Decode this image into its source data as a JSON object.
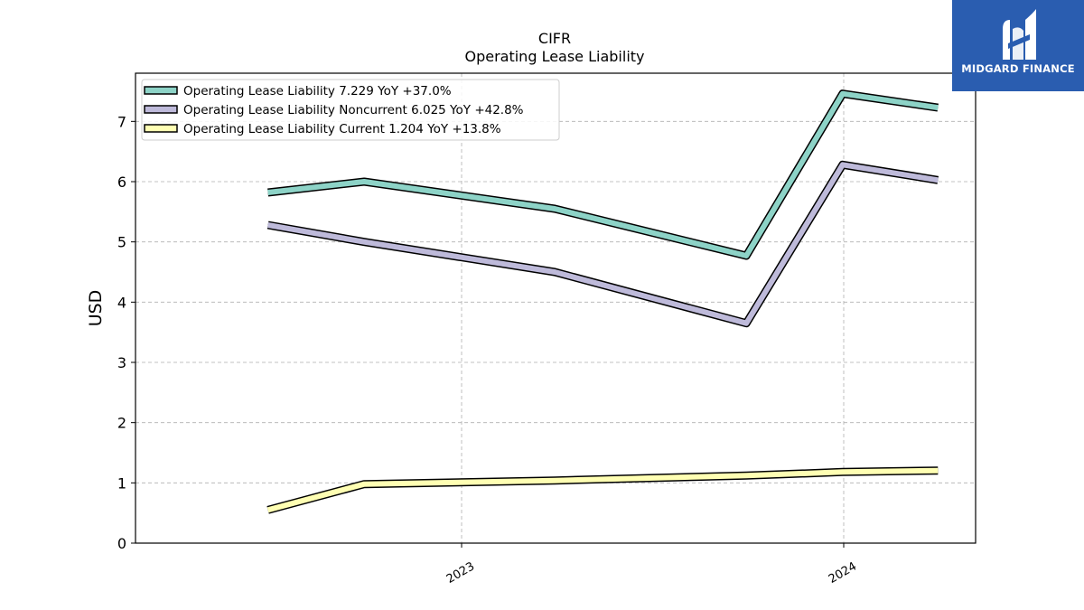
{
  "chart_data": {
    "type": "line",
    "title": "CIFR",
    "subtitle": "Operating Lease Liability",
    "ylabel": "USD",
    "xlabel": "",
    "ylim": [
      0,
      7.8
    ],
    "yticks": [
      0,
      1,
      2,
      3,
      4,
      5,
      6,
      7
    ],
    "x": [
      "2022-06-30",
      "2022-09-30",
      "2023-03-31",
      "2023-09-30",
      "2023-12-31",
      "2024-03-31"
    ],
    "xticks": [
      "2023",
      "2024"
    ],
    "xtick_dates": [
      "2023-01-01",
      "2024-01-01"
    ],
    "grid": true,
    "legend_position": "top-left",
    "series": [
      {
        "name": "Operating Lease Liability  7.229 YoY +37.0%",
        "color": "#8dd3c7",
        "values": [
          5.82,
          6.0,
          5.55,
          4.77,
          7.46,
          7.229
        ]
      },
      {
        "name": "Operating Lease Liability Noncurrent  6.025 YoY +42.8%",
        "color": "#bebada",
        "values": [
          5.28,
          5.0,
          4.5,
          3.65,
          6.28,
          6.025
        ]
      },
      {
        "name": "Operating Lease Liability Current  1.204 YoY +13.8%",
        "color": "#ffffb3",
        "values": [
          0.55,
          0.98,
          1.04,
          1.12,
          1.18,
          1.204
        ]
      }
    ]
  },
  "logo": {
    "text": "MIDGARD FINANCE",
    "color": "#2a5db0"
  }
}
